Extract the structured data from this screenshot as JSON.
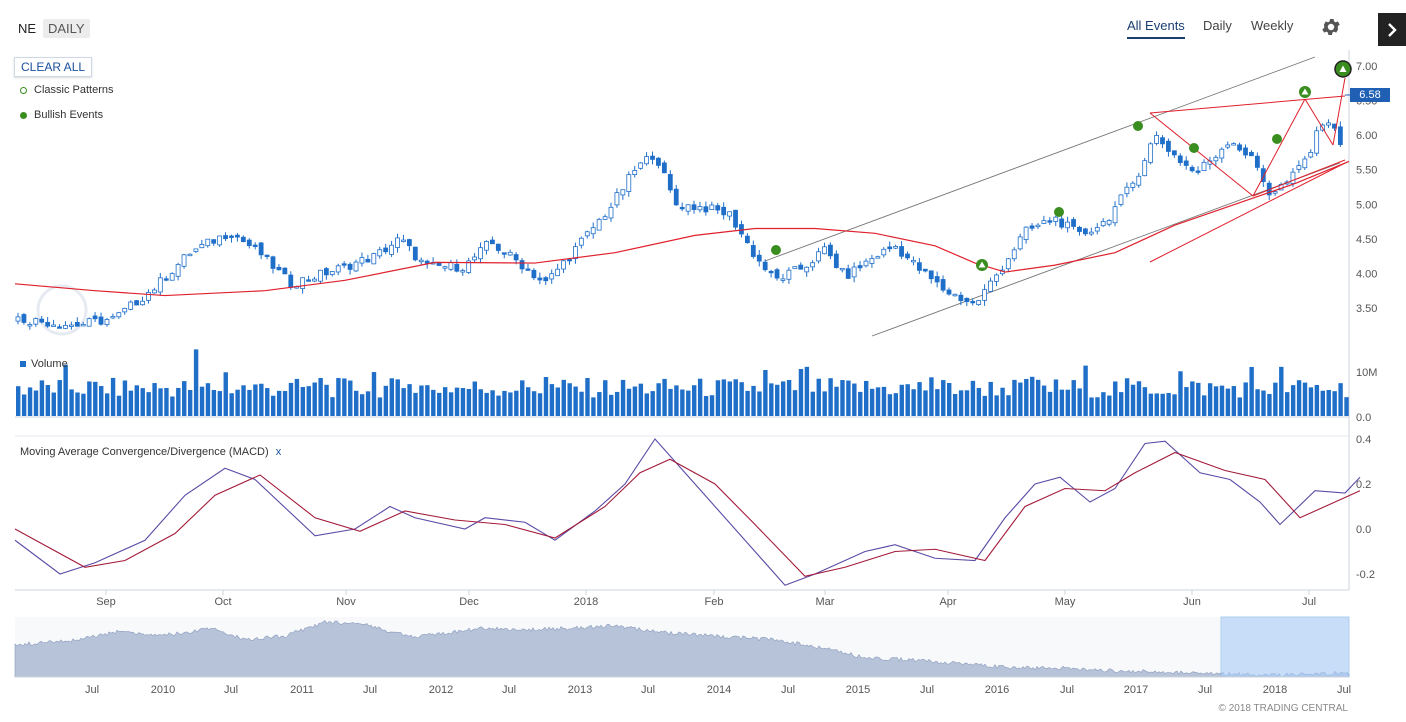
{
  "header": {
    "ticker": "NE",
    "interval": "DAILY",
    "nav": [
      "All Events",
      "Daily",
      "Weekly"
    ],
    "settings_icon": "gear-icon",
    "side_icon": "chevron-right-icon"
  },
  "legend": {
    "clear_label": "CLEAR ALL",
    "classic_patterns": "Classic Patterns",
    "bullish_events": "Bullish Events"
  },
  "price_chart": {
    "current_price": "6.58",
    "y_ticks": [
      "7.00",
      "6.50",
      "6.00",
      "5.50",
      "5.00",
      "4.50",
      "4.00",
      "3.50"
    ],
    "colors": {
      "candle": "#1f6fc9",
      "ma_line": "#e0202c",
      "event": "#3a8d1f",
      "channel": "#777777"
    }
  },
  "volume": {
    "label": "Volume",
    "y_ticks": [
      "10M",
      "0.0"
    ]
  },
  "macd": {
    "label": "Moving Average Convergence/Divergence (MACD)",
    "close": "x",
    "y_ticks": [
      "0.4",
      "0.2",
      "0.0",
      "-0.2"
    ]
  },
  "x_axis": [
    "Sep",
    "Oct",
    "Nov",
    "Dec",
    "2018",
    "Feb",
    "Mar",
    "Apr",
    "May",
    "Jun",
    "Jul"
  ],
  "navigator": {
    "x_axis": [
      "Jul",
      "2010",
      "Jul",
      "2011",
      "Jul",
      "2012",
      "Jul",
      "2013",
      "Jul",
      "2014",
      "Jul",
      "2015",
      "Jul",
      "2016",
      "Jul",
      "2017",
      "Jul",
      "2018",
      "Jul"
    ]
  },
  "copyright": "© 2018 TRADING CENTRAL"
}
